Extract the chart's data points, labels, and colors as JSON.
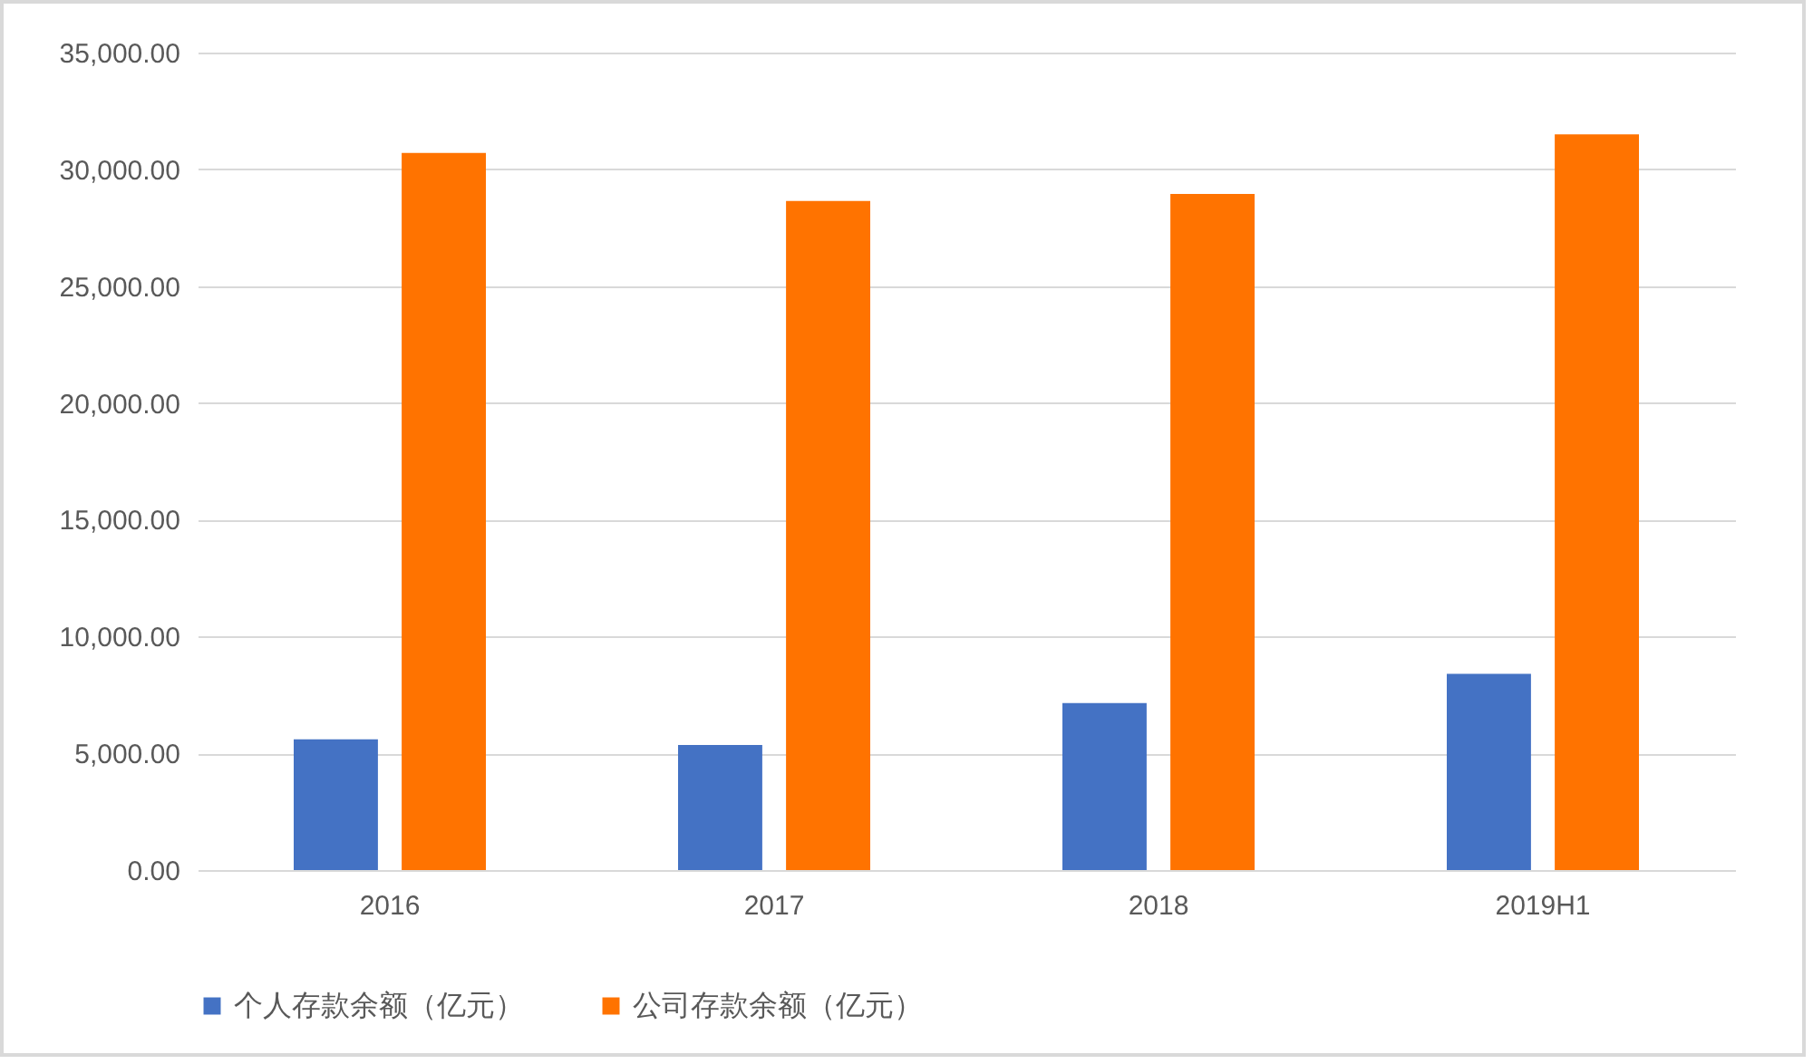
{
  "chart_data": {
    "type": "bar",
    "categories": [
      "2016",
      "2017",
      "2018",
      "2019H1"
    ],
    "series": [
      {
        "name": "个人存款余额（亿元）",
        "color": "#4472c4",
        "values": [
          5600,
          5350,
          7150,
          8400
        ]
      },
      {
        "name": "公司存款余额（亿元）",
        "color": "#ff7300",
        "values": [
          30700,
          28650,
          28950,
          31500
        ]
      }
    ],
    "ylim": [
      0,
      35000
    ],
    "yticks": [
      {
        "value": 0,
        "label": "0.00"
      },
      {
        "value": 5000,
        "label": "5,000.00"
      },
      {
        "value": 10000,
        "label": "10,000.00"
      },
      {
        "value": 15000,
        "label": "15,000.00"
      },
      {
        "value": 20000,
        "label": "20,000.00"
      },
      {
        "value": 25000,
        "label": "25,000.00"
      },
      {
        "value": 30000,
        "label": "30,000.00"
      },
      {
        "value": 35000,
        "label": "35,000.00"
      }
    ],
    "grid": "y",
    "legend": "bottom"
  }
}
